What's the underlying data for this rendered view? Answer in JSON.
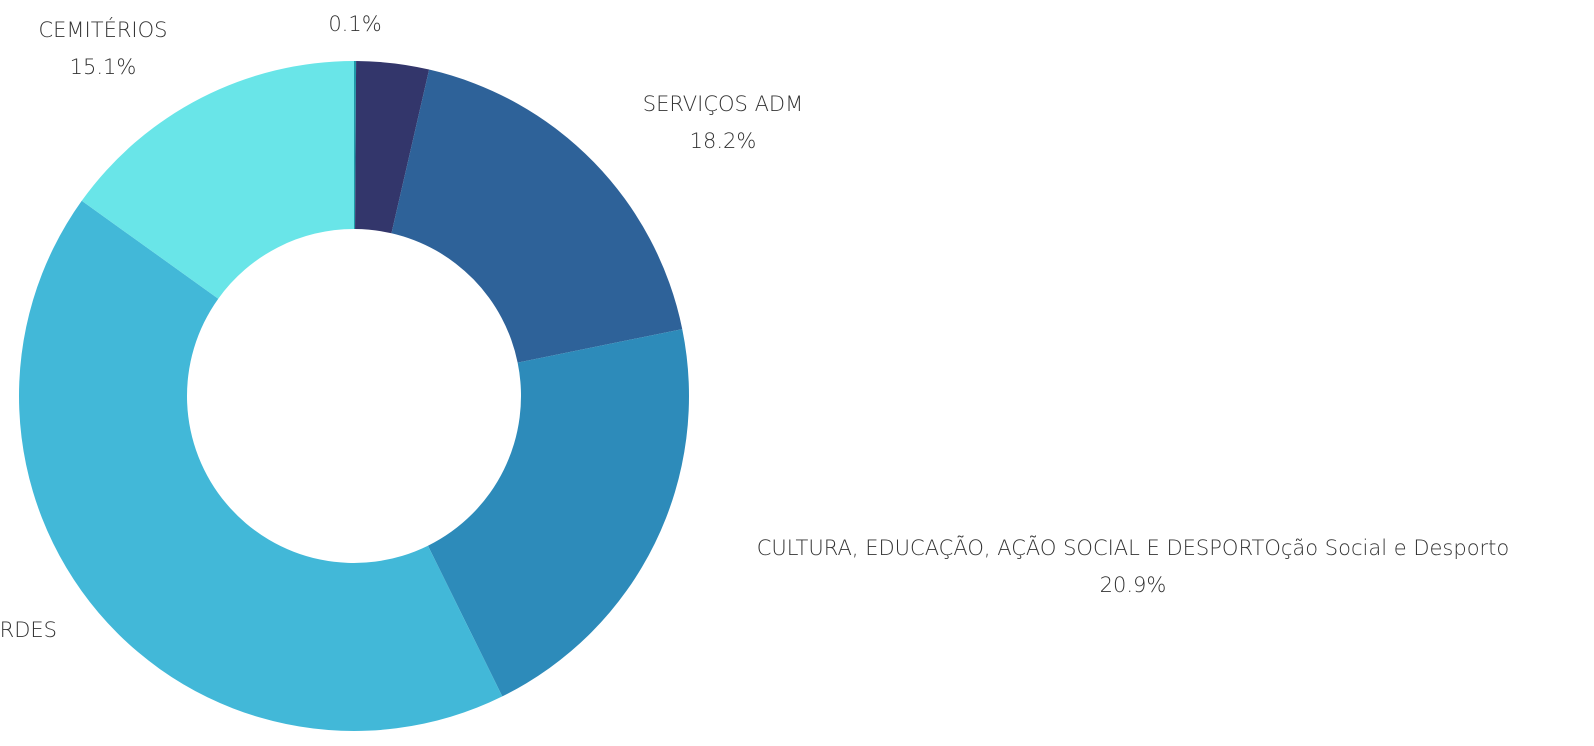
{
  "chart_data": {
    "type": "donut",
    "categories": [
      null,
      null,
      "SERVIÇOS ADM",
      "CULTURA, EDUCAÇÃO, AÇÃO SOCIAL E DESPORTOção Social e Desporto",
      "RDES",
      "CEMITÉRIOS"
    ],
    "values": [
      0.1,
      3.5,
      18.2,
      20.9,
      42.2,
      15.1
    ],
    "value_labels": [
      "0.1%",
      null,
      "18.2%",
      "20.9%",
      null,
      "15.1%"
    ],
    "colors": [
      "#1f9aa8",
      "#33366b",
      "#2e6299",
      "#2d8bba",
      "#42b8d8",
      "#69e5e8"
    ]
  }
}
